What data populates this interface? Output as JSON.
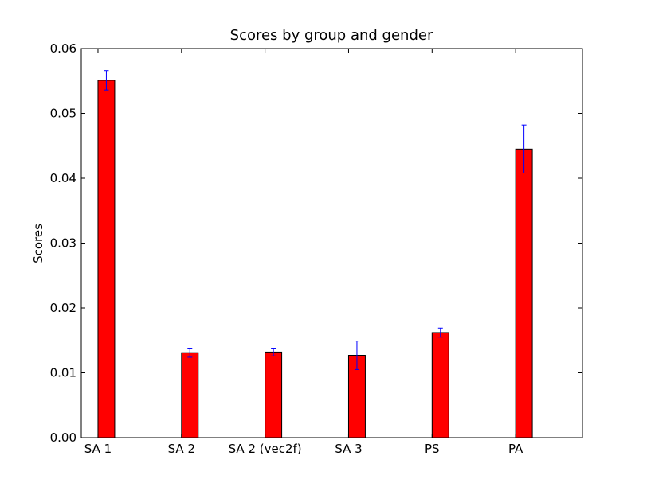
{
  "chart_data": {
    "type": "bar",
    "title": "Scores by group and gender",
    "xlabel": "",
    "ylabel": "Scores",
    "categories": [
      "SA 1",
      "SA 2",
      "SA 2 (vec2f)",
      "SA 3",
      "PS",
      "PA"
    ],
    "values": [
      0.0551,
      0.0131,
      0.0132,
      0.0127,
      0.0162,
      0.0445
    ],
    "errors": [
      0.0015,
      0.0007,
      0.0006,
      0.0022,
      0.0007,
      0.0037
    ],
    "ylim": [
      0,
      0.06
    ],
    "yticks": [
      "0.00",
      "0.01",
      "0.02",
      "0.03",
      "0.04",
      "0.05",
      "0.06"
    ],
    "grid": false,
    "colors": {
      "bar_fill": "#ff0000",
      "bar_edge": "#000000",
      "error_bar": "#0000ff"
    }
  }
}
